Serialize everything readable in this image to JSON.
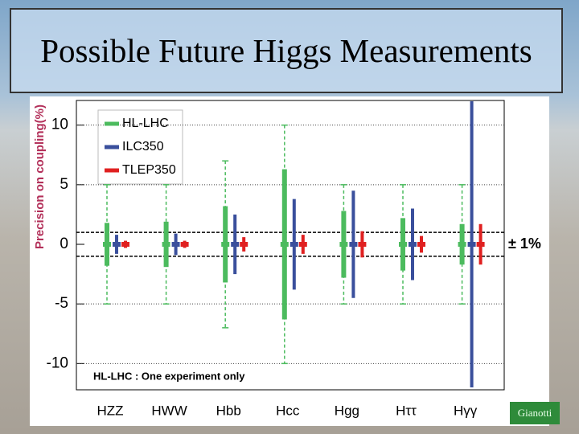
{
  "title": "Possible Future Higgs Measurements",
  "credit": "Gianotti",
  "chart_data": {
    "type": "errorbar",
    "y_label": "Precision on coupling(%)",
    "categories": [
      "HZZ",
      "HWW",
      "Hbb",
      "Hcc",
      "Hgg",
      "Hττ",
      "Hγγ"
    ],
    "series": [
      {
        "name": "HL-LHC",
        "color": "#4cbb5e",
        "values": [
          1.8,
          1.9,
          3.2,
          6.3,
          2.8,
          2.2,
          1.7
        ],
        "one_experiment_values": [
          5,
          5,
          7,
          10,
          5,
          5,
          5
        ]
      },
      {
        "name": "ILC350",
        "color": "#3a4f9c",
        "values": [
          0.8,
          0.9,
          2.5,
          3.8,
          4.5,
          3,
          12
        ]
      },
      {
        "name": "TLEP350",
        "color": "#e02020",
        "values": [
          0.3,
          0.3,
          0.6,
          0.8,
          1.1,
          0.7,
          1.7
        ]
      }
    ],
    "annotation": "HL-LHC : One experiment only",
    "band": {
      "value": 1,
      "label": "± 1%"
    },
    "ylim": [
      -12,
      12
    ],
    "yticks": [
      -10,
      -5,
      0,
      5,
      10
    ],
    "grid": true
  }
}
